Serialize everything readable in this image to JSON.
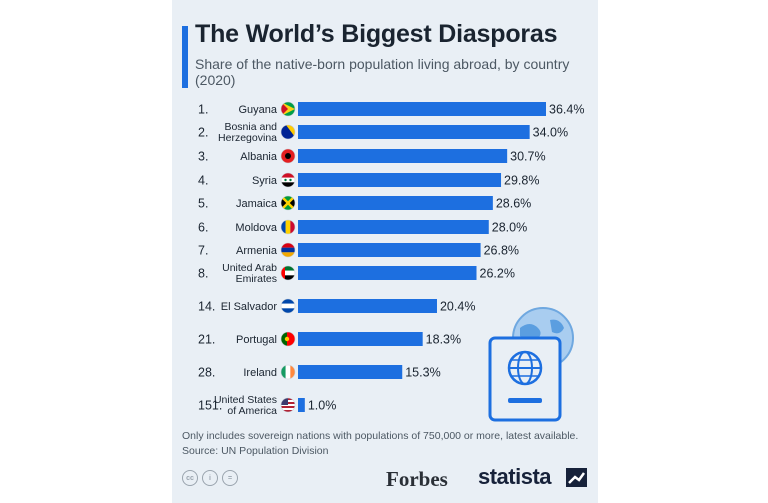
{
  "header": {
    "title": "The World’s Biggest Diasporas",
    "subtitle": "Share of the native-born population living abroad, by country (2020)"
  },
  "chart_data": {
    "type": "bar",
    "orientation": "horizontal",
    "title": "The World’s Biggest Diasporas",
    "subtitle": "Share of the native-born population living abroad, by country (2020)",
    "bar_color": "#1d6fe0",
    "rows": [
      {
        "rank": "1.",
        "label": [
          "Guyana"
        ],
        "value": 36.4,
        "value_label": "36.4%",
        "flag": "flag-guyana"
      },
      {
        "rank": "2.",
        "label": [
          "Bosnia and",
          "Herzegovina"
        ],
        "value": 34.0,
        "value_label": "34.0%",
        "flag": "flag-bosnia"
      },
      {
        "rank": "3.",
        "label": [
          "Albania"
        ],
        "value": 30.7,
        "value_label": "30.7%",
        "flag": "flag-albania"
      },
      {
        "rank": "4.",
        "label": [
          "Syria"
        ],
        "value": 29.8,
        "value_label": "29.8%",
        "flag": "flag-syria"
      },
      {
        "rank": "5.",
        "label": [
          "Jamaica"
        ],
        "value": 28.6,
        "value_label": "28.6%",
        "flag": "flag-jamaica"
      },
      {
        "rank": "6.",
        "label": [
          "Moldova"
        ],
        "value": 28.0,
        "value_label": "28.0%",
        "flag": "flag-moldova"
      },
      {
        "rank": "7.",
        "label": [
          "Armenia"
        ],
        "value": 26.8,
        "value_label": "26.8%",
        "flag": "flag-armenia"
      },
      {
        "rank": "8.",
        "label": [
          "United Arab",
          "Emirates"
        ],
        "value": 26.2,
        "value_label": "26.2%",
        "flag": "flag-uae"
      },
      {
        "rank": "14.",
        "label": [
          "El Salvador"
        ],
        "value": 20.4,
        "value_label": "20.4%",
        "flag": "flag-el-salvador"
      },
      {
        "rank": "21.",
        "label": [
          "Portugal"
        ],
        "value": 18.3,
        "value_label": "18.3%",
        "flag": "flag-portugal"
      },
      {
        "rank": "28.",
        "label": [
          "Ireland"
        ],
        "value": 15.3,
        "value_label": "15.3%",
        "flag": "flag-ireland"
      },
      {
        "rank": "151.",
        "label": [
          "United States",
          "of America"
        ],
        "value": 1.0,
        "value_label": "1.0%",
        "flag": "flag-usa"
      }
    ]
  },
  "footer": {
    "note": "Only includes sovereign nations with populations of 750,000 or more, latest available.",
    "source": "Source: UN Population Division",
    "license_icons": [
      "cc",
      "i",
      "="
    ],
    "brand_left": "Forbes",
    "brand_right": "statista"
  }
}
